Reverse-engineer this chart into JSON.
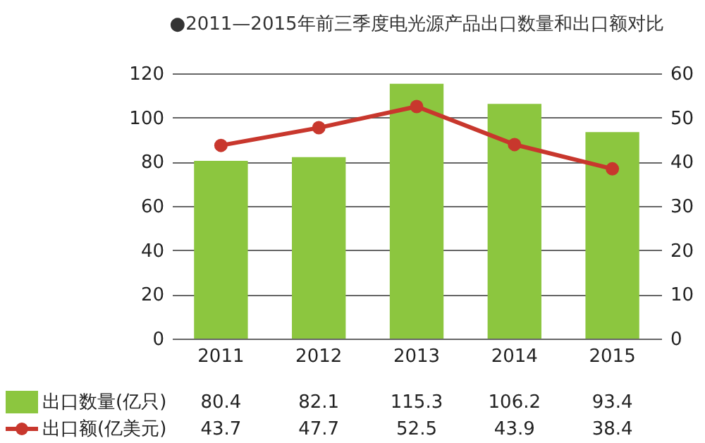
{
  "chart_data": {
    "type": "bar",
    "title": "●2011—2015年前三季度电光源产品出口数量和出口额对比",
    "categories": [
      "2011",
      "2012",
      "2013",
      "2014",
      "2015"
    ],
    "series": [
      {
        "name": "出口数量(亿只)",
        "color": "#8cc63f",
        "values": [
          80.4,
          82.1,
          115.3,
          106.2,
          93.4
        ]
      },
      {
        "name": "出口额(亿美元)",
        "type": "line",
        "axis": "y2",
        "color": "#c8372d",
        "marker": "circle",
        "values": [
          43.7,
          47.7,
          52.5,
          43.9,
          38.4
        ]
      }
    ],
    "ylim": [
      0,
      120
    ],
    "yticks": [
      0,
      20,
      40,
      60,
      80,
      100,
      120
    ],
    "y2lim": [
      0,
      60
    ],
    "y2ticks": [
      0,
      10,
      20,
      30,
      40,
      50,
      60
    ],
    "grid": "y",
    "legend": "bottom",
    "data_labels": true
  }
}
